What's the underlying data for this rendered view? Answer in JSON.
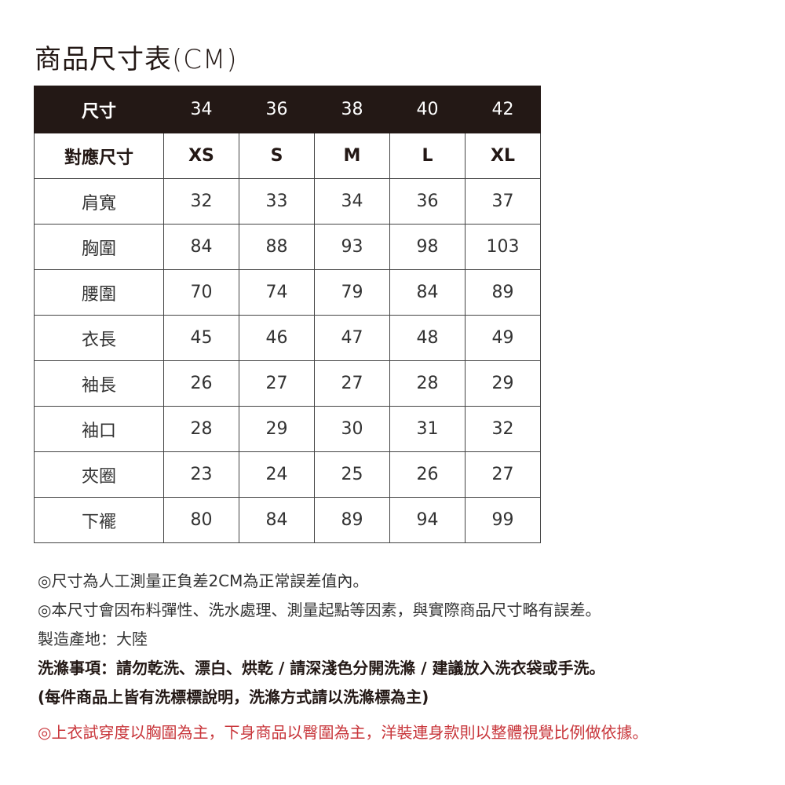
{
  "title": "商品尺寸表(CM)",
  "table": {
    "header": [
      "尺寸",
      "34",
      "36",
      "38",
      "40",
      "42"
    ],
    "sizes": [
      "對應尺寸",
      "XS",
      "S",
      "M",
      "L",
      "XL"
    ],
    "rows": [
      [
        "肩寬",
        "32",
        "33",
        "34",
        "36",
        "37"
      ],
      [
        "胸圍",
        "84",
        "88",
        "93",
        "98",
        "103"
      ],
      [
        "腰圍",
        "70",
        "74",
        "79",
        "84",
        "89"
      ],
      [
        "衣長",
        "45",
        "46",
        "47",
        "48",
        "49"
      ],
      [
        "袖長",
        "26",
        "27",
        "27",
        "28",
        "29"
      ],
      [
        "袖口",
        "28",
        "29",
        "30",
        "31",
        "32"
      ],
      [
        "夾圈",
        "23",
        "24",
        "25",
        "26",
        "27"
      ],
      [
        "下襬",
        "80",
        "84",
        "89",
        "94",
        "99"
      ]
    ]
  },
  "notes": {
    "line1": "◎尺寸為人工測量正負差2CM為正常誤差值內。",
    "line2": "◎本尺寸會因布料彈性、洗水處理、測量起點等因素，與實際商品尺寸略有誤差。",
    "origin": "製造產地：大陸",
    "care": "洗滌事項：請勿乾洗、漂白、烘乾 / 請深淺色分開洗滌 / 建議放入洗衣袋或手洗。",
    "care_note": "(每件商品上皆有洗標標說明，洗滌方式請以洗滌標為主)",
    "fit": "◎上衣試穿度以胸圍為主，下身商品以臀圍為主，洋裝連身款則以整體視覺比例做依據。"
  },
  "colors": {
    "header_bg": "#231815",
    "warning_text": "#c8353a"
  }
}
